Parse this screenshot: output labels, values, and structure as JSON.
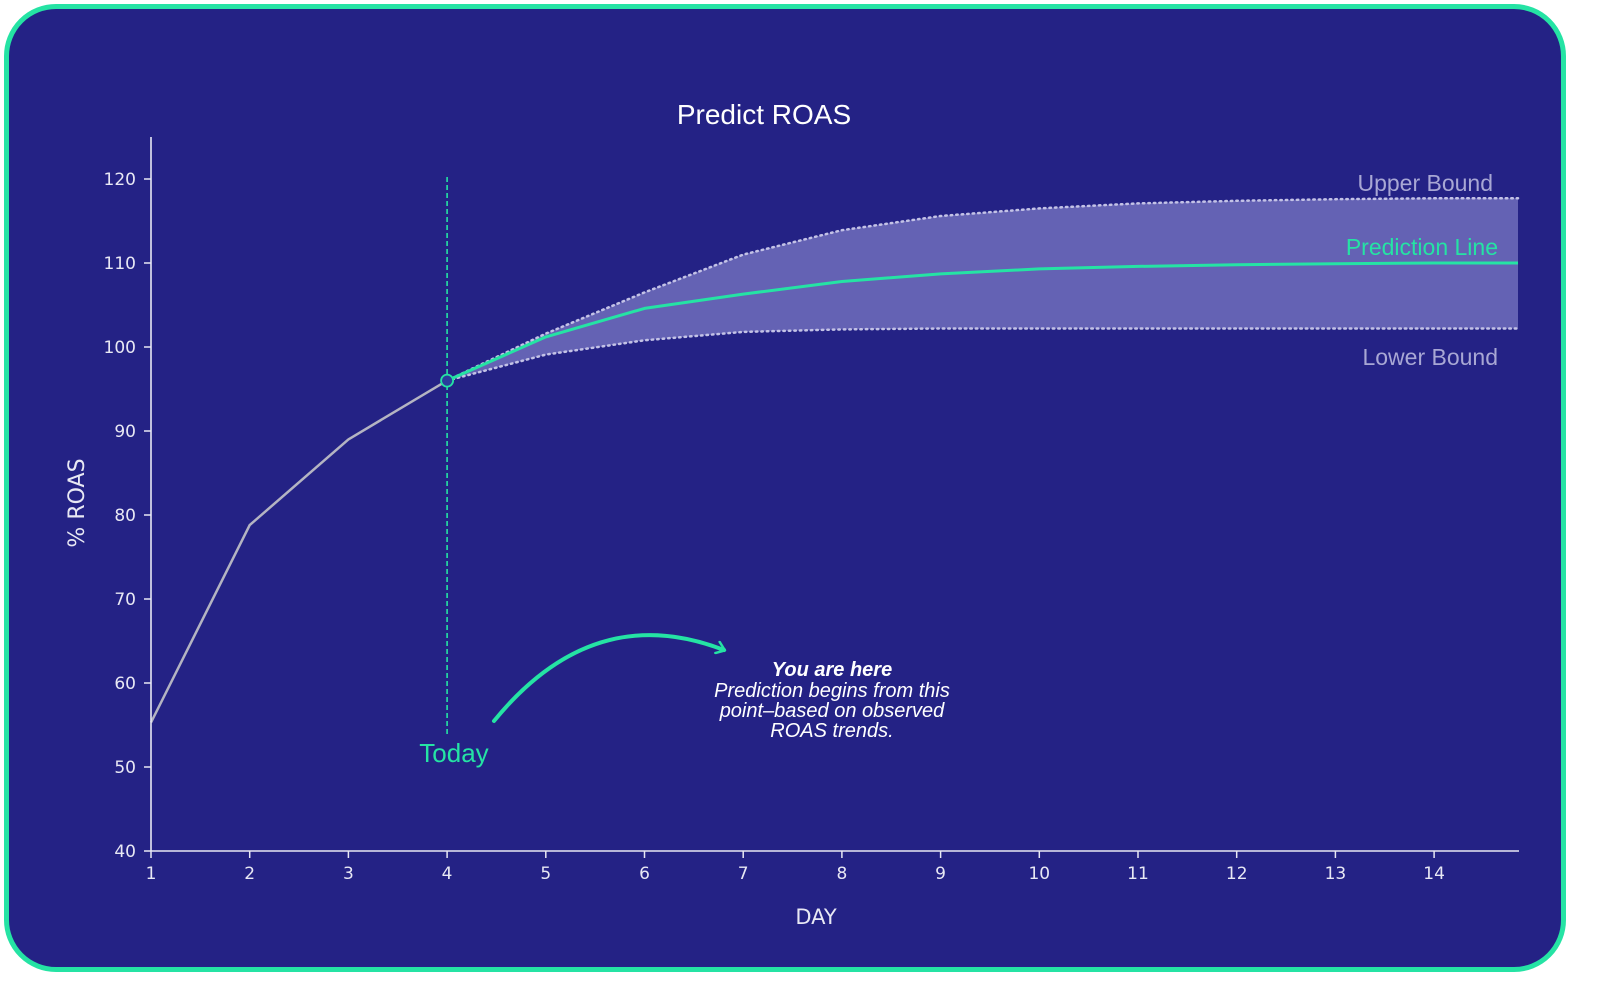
{
  "colors": {
    "background": "#242285",
    "border": "#25e3a4",
    "prediction": "#25e3a4",
    "observed": "#b4b4c2",
    "band": "#6a68b8",
    "bound_label": "#a8a7d4",
    "axis": "#e8e8f4"
  },
  "chart_data": {
    "type": "line",
    "title": "Predict ROAS",
    "xlabel": "DAY",
    "ylabel": "% ROAS",
    "xlim": [
      1,
      14.85
    ],
    "ylim": [
      40,
      125
    ],
    "x_ticks": [
      1,
      2,
      3,
      4,
      5,
      6,
      7,
      8,
      9,
      10,
      11,
      12,
      13,
      14
    ],
    "y_ticks": [
      40,
      50,
      60,
      70,
      80,
      90,
      100,
      110,
      120
    ],
    "grid": false,
    "observed": {
      "x": [
        1,
        2,
        3,
        4
      ],
      "y": [
        55.3,
        78.8,
        89.0,
        96.0
      ]
    },
    "prediction": {
      "name": "Prediction Line",
      "x": [
        4,
        5,
        6,
        7,
        8,
        9,
        10,
        11,
        12,
        13,
        14,
        14.85
      ],
      "y": [
        96.0,
        101.2,
        104.6,
        106.3,
        107.8,
        108.7,
        109.3,
        109.6,
        109.8,
        109.9,
        110.0,
        110.0
      ]
    },
    "upper_bound": {
      "name": "Upper Bound",
      "x": [
        4,
        5,
        6,
        7,
        8,
        9,
        10,
        11,
        12,
        13,
        14,
        14.85
      ],
      "y": [
        96.0,
        101.6,
        106.5,
        111.0,
        113.9,
        115.6,
        116.5,
        117.1,
        117.4,
        117.6,
        117.7,
        117.7
      ]
    },
    "lower_bound": {
      "name": "Lower Bound",
      "x": [
        4,
        5,
        6,
        7,
        8,
        9,
        10,
        11,
        12,
        13,
        14,
        14.85
      ],
      "y": [
        96.0,
        99.1,
        100.8,
        101.8,
        102.1,
        102.2,
        102.2,
        102.2,
        102.2,
        102.2,
        102.2,
        102.2
      ]
    },
    "today": {
      "x": 4,
      "label": "Today"
    },
    "annotation": {
      "heading": "You are here",
      "lines": [
        "Prediction begins from this",
        "point–based on observed",
        "ROAS trends."
      ]
    }
  }
}
